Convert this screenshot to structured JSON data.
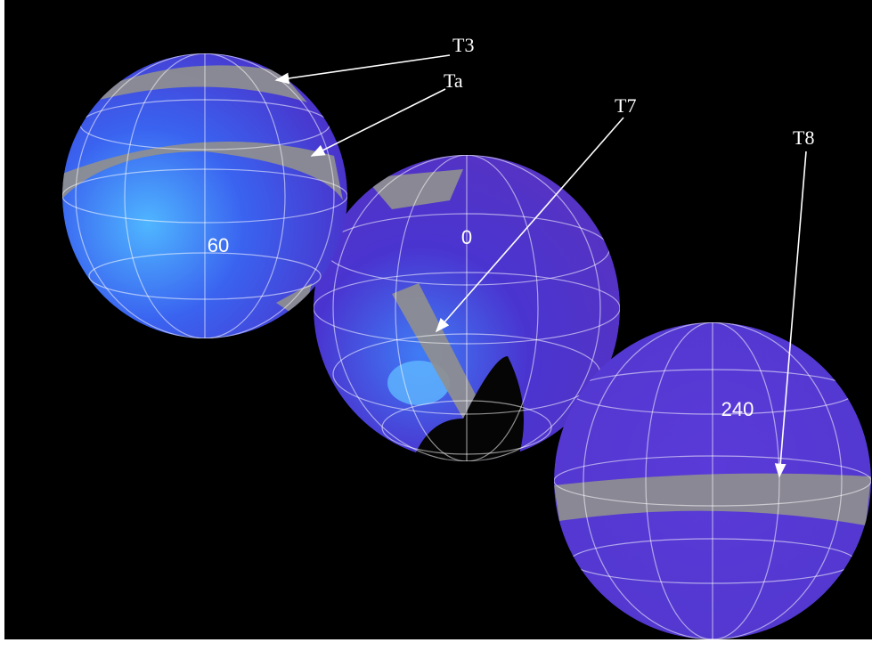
{
  "annotations": {
    "t3": "T3",
    "ta": "Ta",
    "t7": "T7",
    "t8": "T8"
  },
  "globes": [
    {
      "label": "60"
    },
    {
      "label": "0"
    },
    {
      "label": "240"
    }
  ]
}
